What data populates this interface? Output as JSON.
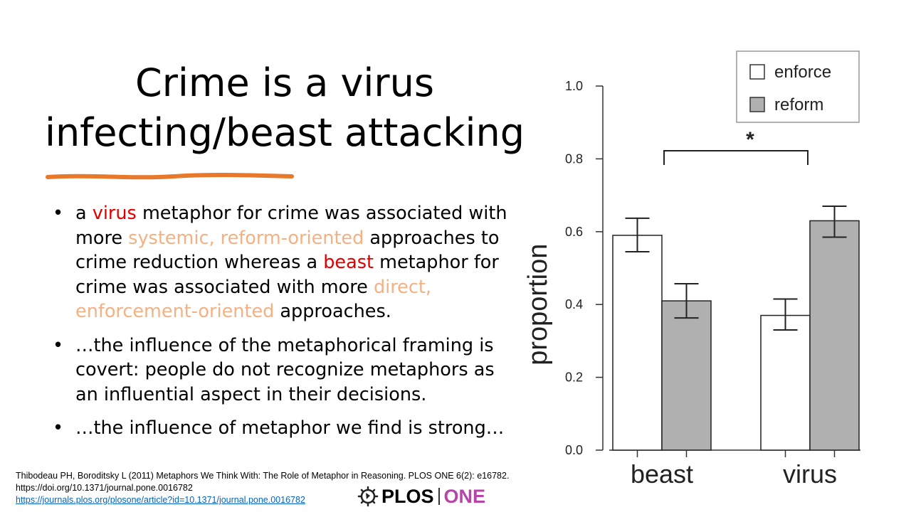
{
  "slide": {
    "title_line1": "Crime is a virus",
    "title_line2": "infecting/beast attacking",
    "bullets": [
      {
        "segments": [
          {
            "text": "a ",
            "style": "plain"
          },
          {
            "text": "virus",
            "style": "red"
          },
          {
            "text": " metaphor for crime was associated with more ",
            "style": "plain"
          },
          {
            "text": "systemic, reform-oriented",
            "style": "tan"
          },
          {
            "text": " approaches to crime reduction whereas a ",
            "style": "plain"
          },
          {
            "text": "beast",
            "style": "red"
          },
          {
            "text": " metaphor for crime was associated with more ",
            "style": "plain"
          },
          {
            "text": "direct, enforcement-oriented",
            "style": "tan"
          },
          {
            "text": " approaches.",
            "style": "plain"
          }
        ]
      },
      {
        "text": "…the influence of the metaphorical framing is covert: people do not recognize metaphors as an influential aspect in their decisions."
      },
      {
        "text": "…the influence of metaphor we find is strong…"
      }
    ],
    "bullet_symbol": "•",
    "citation_line1": "Thibodeau PH, Boroditsky L (2011) Metaphors We Think With: The Role of Metaphor in Reasoning. PLOS ONE 6(2): e16782.",
    "citation_line2": "https://doi.org/10.1371/journal.pone.0016782",
    "citation_link": "https://journals.plos.org/plosone/article?id=10.1371/journal.pone.0016782",
    "logo_text_plos": "PLOS",
    "logo_text_one": "ONE",
    "colors": {
      "highlight_red": "#e00000",
      "highlight_tan": "#f4b183",
      "underline_orange": "#e8782a",
      "logo_one": "#b844a8"
    }
  },
  "chart_data": {
    "type": "bar",
    "categories": [
      "beast",
      "virus"
    ],
    "series": [
      {
        "name": "enforce",
        "values": [
          0.59,
          0.37
        ],
        "err_low": [
          0.545,
          0.33
        ],
        "err_high": [
          0.637,
          0.415
        ],
        "color": "#ffffff"
      },
      {
        "name": "reform",
        "values": [
          0.41,
          0.63
        ],
        "err_low": [
          0.363,
          0.585
        ],
        "err_high": [
          0.457,
          0.67
        ],
        "color": "#b0b0b0"
      }
    ],
    "ylabel": "proportion",
    "xlabel": "",
    "ylim": [
      0,
      1.0
    ],
    "yticks": [
      "0.0",
      "0.2",
      "0.4",
      "0.6",
      "0.8",
      "1.0"
    ],
    "legend_position": "top-right",
    "significance_marker": "*",
    "grid": false
  }
}
